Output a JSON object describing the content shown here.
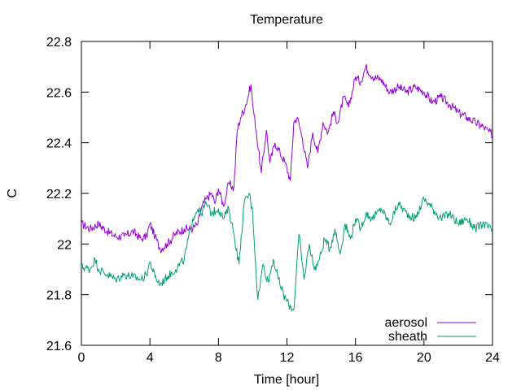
{
  "chart_data": {
    "type": "line",
    "title": "Temperature",
    "xlabel": "Time [hour]",
    "ylabel": "C",
    "xlim": [
      0,
      24
    ],
    "ylim": [
      21.6,
      22.8
    ],
    "xticks": [
      "0",
      "4",
      "8",
      "12",
      "16",
      "20",
      "24"
    ],
    "yticks": [
      "21.6",
      "21.8",
      "22",
      "22.2",
      "22.4",
      "22.6",
      "22.8"
    ],
    "grid": false,
    "legend_position": "bottom-right",
    "series": [
      {
        "name": "aerosol",
        "color": "#9400d3",
        "x": [
          0,
          0.5,
          1,
          1.5,
          2,
          2.5,
          3,
          3.5,
          3.8,
          4,
          4.3,
          4.6,
          5,
          5.5,
          6,
          6.5,
          6.8,
          7,
          7.3,
          7.6,
          7.8,
          8,
          8.3,
          8.6,
          8.9,
          9.1,
          9.3,
          9.6,
          9.9,
          10,
          10.2,
          10.5,
          10.8,
          11,
          11.3,
          11.6,
          11.9,
          12.2,
          12.4,
          12.6,
          12.9,
          13.2,
          13.5,
          13.8,
          14.1,
          14.4,
          14.7,
          15,
          15.3,
          15.6,
          16,
          16.3,
          16.6,
          17,
          17.5,
          18,
          18.5,
          19,
          19.5,
          20,
          20.5,
          21,
          21.5,
          22,
          22.5,
          23,
          23.5,
          24
        ],
        "values": [
          22.08,
          22.06,
          22.08,
          22.05,
          22.03,
          22.03,
          22.05,
          22.02,
          22.03,
          22.08,
          22.03,
          21.98,
          22.0,
          22.04,
          22.06,
          22.06,
          22.08,
          22.14,
          22.18,
          22.2,
          22.16,
          22.22,
          22.15,
          22.24,
          22.22,
          22.45,
          22.5,
          22.55,
          22.63,
          22.55,
          22.45,
          22.28,
          22.45,
          22.32,
          22.4,
          22.36,
          22.32,
          22.25,
          22.48,
          22.5,
          22.42,
          22.3,
          22.44,
          22.36,
          22.48,
          22.44,
          22.52,
          22.48,
          22.58,
          22.54,
          22.66,
          22.64,
          22.7,
          22.66,
          22.65,
          22.6,
          22.62,
          22.6,
          22.62,
          22.6,
          22.56,
          22.58,
          22.55,
          22.52,
          22.5,
          22.48,
          22.46,
          22.43
        ]
      },
      {
        "name": "sheath",
        "color": "#009e73",
        "x": [
          0,
          0.5,
          0.8,
          1,
          1.5,
          2,
          2.5,
          3,
          3.5,
          3.8,
          4,
          4.3,
          4.6,
          5,
          5.5,
          6,
          6.5,
          6.8,
          7,
          7.3,
          7.6,
          8,
          8.3,
          8.6,
          8.9,
          9.2,
          9.5,
          9.8,
          10,
          10.3,
          10.6,
          10.9,
          11.2,
          11.5,
          11.8,
          12.1,
          12.4,
          12.7,
          13,
          13.3,
          13.6,
          13.9,
          14.2,
          14.5,
          14.8,
          15.1,
          15.4,
          15.7,
          16,
          16.3,
          16.6,
          17,
          17.5,
          18,
          18.5,
          19,
          19.5,
          20,
          20.5,
          21,
          21.5,
          22,
          22.5,
          23,
          23.5,
          24
        ],
        "values": [
          21.91,
          21.9,
          21.94,
          21.9,
          21.88,
          21.86,
          21.88,
          21.87,
          21.86,
          21.88,
          21.93,
          21.87,
          21.84,
          21.87,
          21.9,
          21.94,
          22.1,
          22.14,
          22.12,
          22.16,
          22.12,
          22.14,
          22.1,
          22.14,
          22.04,
          21.92,
          22.16,
          22.2,
          22.12,
          21.78,
          21.92,
          21.85,
          21.94,
          21.86,
          21.8,
          21.76,
          21.74,
          22.04,
          21.86,
          22.0,
          21.9,
          21.94,
          22.02,
          21.98,
          22.06,
          21.96,
          22.08,
          22.02,
          22.1,
          22.06,
          22.12,
          22.1,
          22.14,
          22.08,
          22.16,
          22.12,
          22.1,
          22.18,
          22.14,
          22.1,
          22.12,
          22.08,
          22.1,
          22.06,
          22.08,
          22.05
        ]
      }
    ]
  }
}
